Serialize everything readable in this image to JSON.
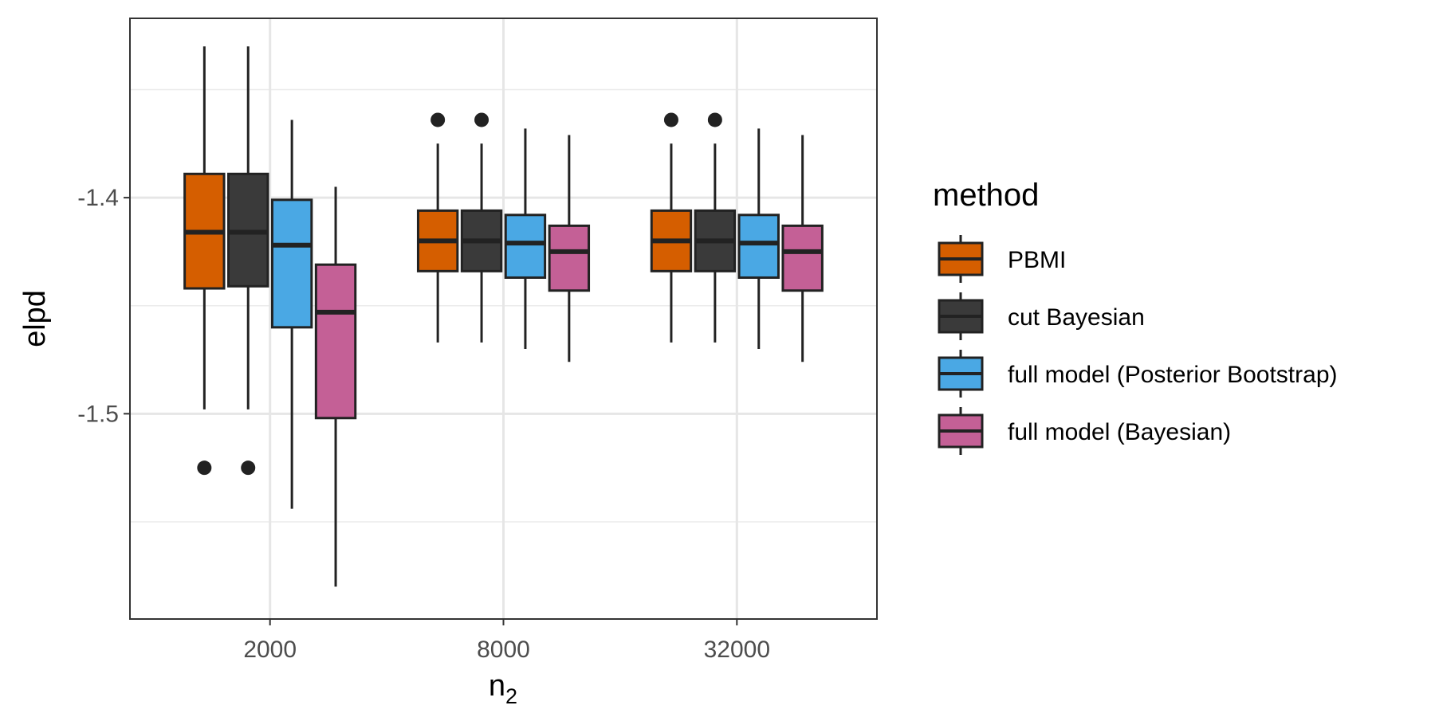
{
  "chart_data": {
    "type": "boxplot",
    "xlabel": "n",
    "xlabel_subscript": "2",
    "ylabel": "elpd",
    "categories": [
      "2000",
      "8000",
      "32000"
    ],
    "y_ticks": [
      "-1.4",
      "-1.5"
    ],
    "y_tick_values": [
      -1.4,
      -1.5
    ],
    "ylim": [
      -1.595,
      -1.317
    ],
    "grid": true,
    "legend": {
      "title": "method",
      "placement": "right"
    },
    "series": [
      {
        "name": "PBMI",
        "color": "#D55E00",
        "boxes": [
          {
            "category": "2000",
            "min": -1.498,
            "q1": -1.442,
            "median": -1.416,
            "q3": -1.389,
            "max": -1.33,
            "outliers": [
              -1.525
            ]
          },
          {
            "category": "8000",
            "min": -1.467,
            "q1": -1.434,
            "median": -1.42,
            "q3": -1.406,
            "max": -1.375,
            "outliers": [
              -1.364
            ]
          },
          {
            "category": "32000",
            "min": -1.467,
            "q1": -1.434,
            "median": -1.42,
            "q3": -1.406,
            "max": -1.375,
            "outliers": [
              -1.364
            ]
          }
        ]
      },
      {
        "name": "cut Bayesian",
        "color": "#3A3A3A",
        "boxes": [
          {
            "category": "2000",
            "min": -1.498,
            "q1": -1.441,
            "median": -1.416,
            "q3": -1.389,
            "max": -1.33,
            "outliers": [
              -1.525
            ]
          },
          {
            "category": "8000",
            "min": -1.467,
            "q1": -1.434,
            "median": -1.42,
            "q3": -1.406,
            "max": -1.375,
            "outliers": [
              -1.364
            ]
          },
          {
            "category": "32000",
            "min": -1.467,
            "q1": -1.434,
            "median": -1.42,
            "q3": -1.406,
            "max": -1.375,
            "outliers": [
              -1.364
            ]
          }
        ]
      },
      {
        "name": "full model (Posterior Bootstrap)",
        "color": "#4AA8E4",
        "boxes": [
          {
            "category": "2000",
            "min": -1.544,
            "q1": -1.46,
            "median": -1.422,
            "q3": -1.401,
            "max": -1.364,
            "outliers": []
          },
          {
            "category": "8000",
            "min": -1.47,
            "q1": -1.437,
            "median": -1.421,
            "q3": -1.408,
            "max": -1.368,
            "outliers": []
          },
          {
            "category": "32000",
            "min": -1.47,
            "q1": -1.437,
            "median": -1.421,
            "q3": -1.408,
            "max": -1.368,
            "outliers": []
          }
        ]
      },
      {
        "name": "full model (Bayesian)",
        "color": "#C46096",
        "boxes": [
          {
            "category": "2000",
            "min": -1.58,
            "q1": -1.502,
            "median": -1.453,
            "q3": -1.431,
            "max": -1.395,
            "outliers": []
          },
          {
            "category": "8000",
            "min": -1.476,
            "q1": -1.443,
            "median": -1.425,
            "q3": -1.413,
            "max": -1.371,
            "outliers": []
          },
          {
            "category": "32000",
            "min": -1.476,
            "q1": -1.443,
            "median": -1.425,
            "q3": -1.413,
            "max": -1.371,
            "outliers": []
          }
        ]
      }
    ]
  }
}
